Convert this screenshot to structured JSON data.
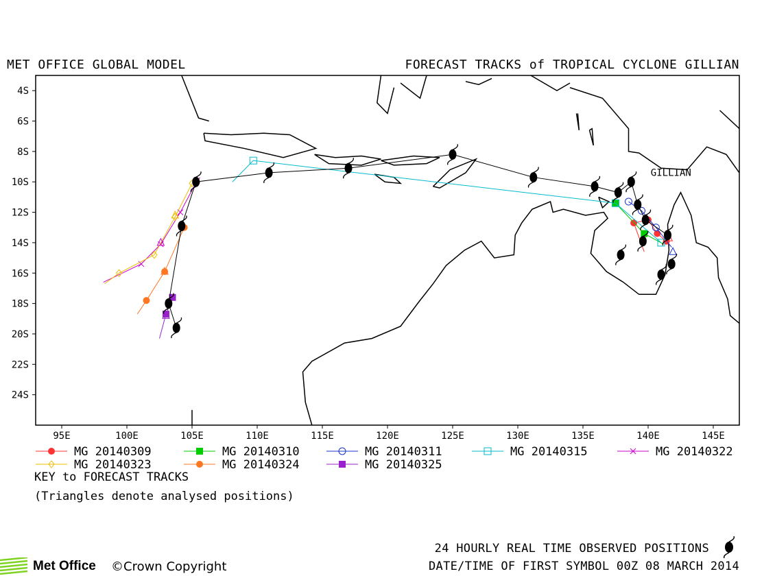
{
  "header": {
    "left": "MET OFFICE GLOBAL MODEL",
    "right": "FORECAST TRACKS of TROPICAL CYCLONE GILLIAN"
  },
  "map": {
    "lon_range": [
      93,
      147
    ],
    "lat_range": [
      -26,
      -3
    ],
    "lon_ticks": [
      {
        "value": 95,
        "label": "95E"
      },
      {
        "value": 100,
        "label": "100E"
      },
      {
        "value": 105,
        "label": "105E"
      },
      {
        "value": 110,
        "label": "110E"
      },
      {
        "value": 115,
        "label": "115E"
      },
      {
        "value": 120,
        "label": "120E"
      },
      {
        "value": 125,
        "label": "125E"
      },
      {
        "value": 130,
        "label": "130E"
      },
      {
        "value": 135,
        "label": "135E"
      },
      {
        "value": 140,
        "label": "140E"
      },
      {
        "value": 145,
        "label": "145E"
      }
    ],
    "lat_ticks": [
      {
        "value": -4,
        "label": "4S"
      },
      {
        "value": -6,
        "label": "6S"
      },
      {
        "value": -8,
        "label": "8S"
      },
      {
        "value": -10,
        "label": "10S"
      },
      {
        "value": -12,
        "label": "12S"
      },
      {
        "value": -14,
        "label": "14S"
      },
      {
        "value": -16,
        "label": "16S"
      },
      {
        "value": -18,
        "label": "18S"
      },
      {
        "value": -20,
        "label": "20S"
      },
      {
        "value": -22,
        "label": "22S"
      },
      {
        "value": -24,
        "label": "24S"
      }
    ],
    "storm_label": {
      "text": "GILLIAN",
      "lon": 140.2,
      "lat": -9.6
    }
  },
  "chart_data": {
    "type": "scatter",
    "observed_track": [
      [
        141.5,
        -13.5
      ],
      [
        139.8,
        -12.5
      ],
      [
        139.2,
        -11.5
      ],
      [
        138.7,
        -10.0
      ],
      [
        137.7,
        -10.7
      ],
      [
        135.9,
        -10.3
      ],
      [
        131.2,
        -9.7
      ],
      [
        125.0,
        -8.2
      ],
      [
        117.0,
        -9.1
      ],
      [
        110.9,
        -9.4
      ],
      [
        105.3,
        -10.0
      ],
      [
        104.2,
        -12.9
      ],
      [
        103.2,
        -18.0
      ],
      [
        103.8,
        -19.6
      ]
    ],
    "observed_extra": [
      [
        139.6,
        -13.9
      ],
      [
        137.9,
        -14.8
      ],
      [
        141.0,
        -16.1
      ],
      [
        141.8,
        -15.4
      ]
    ],
    "series": [
      {
        "name": "MG 20140309",
        "color": "#ff3333",
        "marker": "circle-filled",
        "points": [
          [
            141.4,
            -13.9
          ],
          [
            140.7,
            -13.4
          ],
          [
            140.0,
            -12.5
          ],
          [
            138.9,
            -12.7
          ],
          [
            139.7,
            -14.6
          ]
        ]
      },
      {
        "name": "MG 20140310",
        "color": "#00cc00",
        "marker": "square-filled",
        "points": [
          [
            137.5,
            -11.4
          ],
          [
            139.7,
            -13.4
          ],
          [
            141.2,
            -14.1
          ]
        ]
      },
      {
        "name": "MG 20140311",
        "color": "#1a33cc",
        "marker": "circle-open",
        "points": [
          [
            138.5,
            -11.3
          ],
          [
            139.5,
            -11.9
          ],
          [
            140.6,
            -13.0
          ],
          [
            141.8,
            -14.3
          ]
        ]
      },
      {
        "name": "MG 20140315",
        "color": "#00bbcc",
        "marker": "square-open",
        "points": [
          [
            141.0,
            -14.0
          ],
          [
            137.5,
            -11.4
          ],
          [
            109.7,
            -8.6
          ],
          [
            108.1,
            -10.0
          ]
        ]
      },
      {
        "name": "MG 20140322",
        "color": "#cc00cc",
        "marker": "x",
        "points": [
          [
            105.4,
            -9.9
          ],
          [
            104.1,
            -12.0
          ],
          [
            102.6,
            -14.1
          ],
          [
            101.1,
            -15.4
          ],
          [
            98.2,
            -16.6
          ]
        ]
      },
      {
        "name": "MG 20140323",
        "color": "#eebb00",
        "marker": "diamond-open",
        "points": [
          [
            105.0,
            -10.1
          ],
          [
            103.7,
            -12.3
          ],
          [
            102.1,
            -14.8
          ],
          [
            99.4,
            -16.0
          ],
          [
            98.3,
            -16.7
          ]
        ]
      },
      {
        "name": "MG 20140324",
        "color": "#ff7722",
        "marker": "circle-filled",
        "points": [
          [
            104.4,
            -13.0
          ],
          [
            102.9,
            -15.9
          ],
          [
            101.5,
            -17.8
          ],
          [
            100.8,
            -18.7
          ]
        ]
      },
      {
        "name": "MG 20140325",
        "color": "#9922cc",
        "marker": "square-filled",
        "points": [
          [
            103.5,
            -17.6
          ],
          [
            103.0,
            -18.7
          ],
          [
            102.5,
            -20.3
          ]
        ]
      }
    ],
    "analysed_positions": [
      {
        "series": 0,
        "lon": 141.6,
        "lat": -13.7
      },
      {
        "series": 2,
        "lon": 141.9,
        "lat": -14.6
      },
      {
        "series": 5,
        "lon": 103.7,
        "lat": -12.2
      },
      {
        "series": 6,
        "lon": 102.9,
        "lat": -15.9
      },
      {
        "series": 7,
        "lon": 103.0,
        "lat": -18.8
      },
      {
        "series": 4,
        "lon": 102.6,
        "lat": -14.0
      }
    ]
  },
  "legend": {
    "entries": [
      "MG 20140309",
      "MG 20140310",
      "MG 20140311",
      "MG 20140315",
      "MG 20140322",
      "MG 20140323",
      "MG 20140324",
      "MG 20140325"
    ]
  },
  "key": {
    "title": "KEY to FORECAST TRACKS",
    "note": "(Triangles denote analysed positions)"
  },
  "footer": {
    "observed": "24 HOURLY REAL TIME OBSERVED POSITIONS",
    "first_symbol": "DATE/TIME OF FIRST SYMBOL 00Z 08 MARCH 2014",
    "logo": "Met Office",
    "copyright": "©Crown Copyright"
  },
  "colors": {
    "land": "#000000",
    "frame": "#000000",
    "observed": "#000000"
  }
}
